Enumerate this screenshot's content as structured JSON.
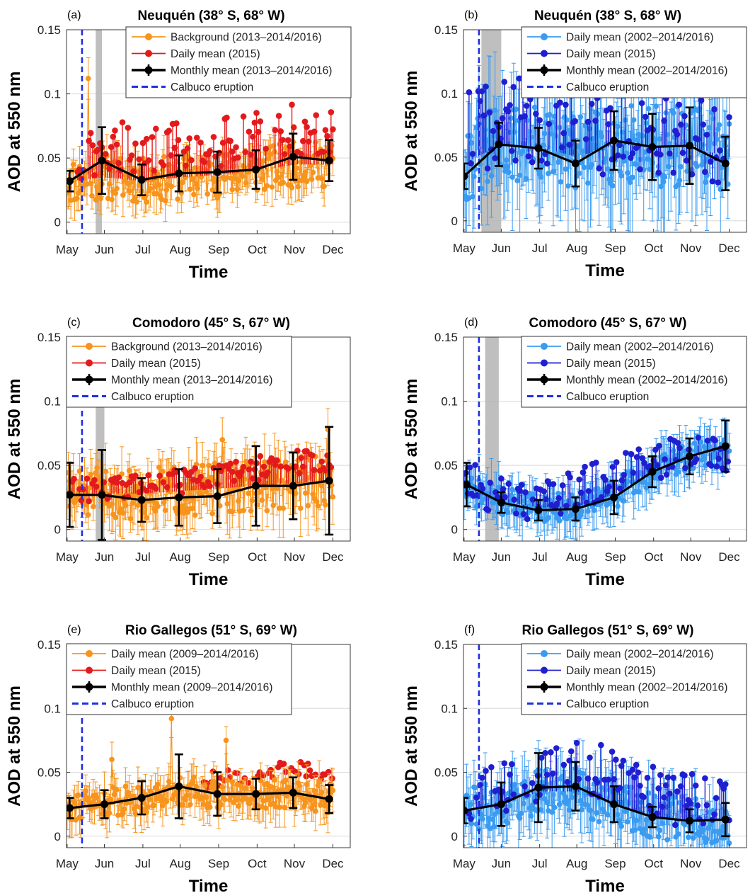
{
  "figure": {
    "colors": {
      "background_orange": "#F7941D",
      "daily_red": "#E31A1C",
      "light_blue": "#3A9BF0",
      "dark_blue": "#1F1FD1",
      "monthly_black": "#000000",
      "eruption_blue": "#1F2FE0",
      "shade_gray": "#B4B4B4",
      "grid": "#D9D9D9"
    }
  },
  "chart_data": [
    {
      "panel": "(a)",
      "type": "line",
      "title": "Neuquén",
      "title_coords": "(38° S, 68° W)",
      "xlabel": "Time",
      "ylabel": "AOD at 550 nm",
      "months": [
        "May",
        "Jun",
        "Jul",
        "Aug",
        "Sep",
        "Oct",
        "Nov",
        "Dec"
      ],
      "yticks": [
        "0.15",
        "0.1",
        "0.05",
        "0"
      ],
      "ylim": [
        -0.009,
        0.15
      ],
      "xlim_days": [
        -0.5,
        228
      ],
      "grid": true,
      "legend_position": "top-right",
      "legend": [
        {
          "label": "Background (2013–2014/2016)",
          "style": "line-dot",
          "color": "#F7941D"
        },
        {
          "label": "Daily mean (2015)",
          "style": "line-dot",
          "color": "#E31A1C"
        },
        {
          "label": "Monthly mean (2013–2014/2016)",
          "style": "errbar",
          "color": "#000000"
        },
        {
          "label": "Calbuco eruption",
          "style": "dashed",
          "color": "#1F2FE0"
        }
      ],
      "eruption_day": 12,
      "shade_days": [
        23,
        28
      ],
      "monthly_mean": {
        "x_day": [
          2,
          28,
          60,
          90,
          121,
          152,
          182,
          211
        ],
        "y": [
          0.032,
          0.048,
          0.033,
          0.038,
          0.039,
          0.041,
          0.051,
          0.048
        ],
        "err": [
          0.008,
          0.026,
          0.012,
          0.014,
          0.016,
          0.015,
          0.018,
          0.016
        ]
      },
      "background": {
        "color": "#F7941D",
        "seed": 11,
        "base": [
          0.032,
          0.035,
          0.032,
          0.035,
          0.037,
          0.04,
          0.045,
          0.045
        ],
        "amp": 0.018,
        "err": 0.012,
        "spikes": [
          [
            17,
            0.112
          ]
        ]
      },
      "daily_2015": {
        "color": "#E31A1C",
        "seed": 21,
        "base": [
          0.035,
          0.06,
          0.055,
          0.057,
          0.06,
          0.065,
          0.07,
          0.068
        ],
        "amp": 0.02,
        "lines": true,
        "start_day": 4
      },
      "bg_on_top": false
    },
    {
      "panel": "(b)",
      "type": "line",
      "title": "Neuquén",
      "title_coords": "(38° S, 68° W)",
      "xlabel": "Time",
      "ylabel": "AOD at 550 nm",
      "months": [
        "May",
        "Jun",
        "Jul",
        "Aug",
        "Sep",
        "Oct",
        "Nov",
        "Dec"
      ],
      "yticks": [
        "0.15",
        "0.1",
        "0.05",
        "0"
      ],
      "ylim": [
        -0.009,
        0.15
      ],
      "xlim_days": [
        -0.5,
        228
      ],
      "grid": true,
      "legend_position": "top-right",
      "legend": [
        {
          "label": "Daily mean (2002–2014/2016)",
          "style": "line-dot",
          "color": "#3A9BF0"
        },
        {
          "label": "Daily mean (2015)",
          "style": "line-dot",
          "color": "#1F1FD1"
        },
        {
          "label": "Monthly mean (2002–2014/2016)",
          "style": "errbar",
          "color": "#000000"
        },
        {
          "label": "Calbuco eruption",
          "style": "dashed",
          "color": "#1F2FE0"
        }
      ],
      "eruption_day": 12,
      "shade_days": [
        14,
        30
      ],
      "monthly_mean": {
        "x_day": [
          0,
          28,
          60,
          90,
          121,
          152,
          182,
          211
        ],
        "y": [
          0.035,
          0.06,
          0.057,
          0.045,
          0.063,
          0.058,
          0.059,
          0.045
        ],
        "err": [
          0.01,
          0.017,
          0.016,
          0.018,
          0.023,
          0.026,
          0.03,
          0.021
        ]
      },
      "background": {
        "color": "#3A9BF0",
        "seed": 31,
        "base": [
          0.045,
          0.06,
          0.058,
          0.05,
          0.06,
          0.058,
          0.058,
          0.05
        ],
        "amp": 0.032,
        "err": 0.035,
        "spikes": []
      },
      "daily_2015": {
        "color": "#1F1FD1",
        "seed": 41,
        "base": [
          0.06,
          0.08,
          0.07,
          0.06,
          0.07,
          0.065,
          0.065,
          0.05
        ],
        "amp": 0.035,
        "lines": true,
        "start_day": 4
      },
      "bg_on_top": false
    },
    {
      "panel": "(c)",
      "type": "line",
      "title": "Comodoro",
      "title_coords": "(45° S, 67° W)",
      "xlabel": "Time",
      "ylabel": "AOD at 550 nm",
      "months": [
        "May",
        "Jun",
        "Jul",
        "Aug",
        "Sep",
        "Oct",
        "Nov",
        "Dec"
      ],
      "yticks": [
        "0.15",
        "0.1",
        "0.05",
        "0"
      ],
      "ylim": [
        -0.009,
        0.15
      ],
      "xlim_days": [
        -0.5,
        228
      ],
      "grid": true,
      "legend_position": "top-left",
      "legend": [
        {
          "label": "Background (2013–2014/2016)",
          "style": "line-dot",
          "color": "#F7941D"
        },
        {
          "label": "Daily mean (2015)",
          "style": "line-dot",
          "color": "#E31A1C"
        },
        {
          "label": "Monthly mean (2013–2014/2016)",
          "style": "errbar",
          "color": "#000000"
        },
        {
          "label": "Calbuco eruption",
          "style": "dashed",
          "color": "#1F2FE0"
        }
      ],
      "eruption_day": 12,
      "shade_days": [
        23,
        30
      ],
      "monthly_mean": {
        "x_day": [
          2,
          28,
          60,
          90,
          121,
          152,
          182,
          211
        ],
        "y": [
          0.027,
          0.027,
          0.023,
          0.025,
          0.026,
          0.034,
          0.034,
          0.038
        ],
        "err": [
          0.025,
          0.035,
          0.017,
          0.022,
          0.021,
          0.031,
          0.026,
          0.042
        ]
      },
      "background": {
        "color": "#F7941D",
        "seed": 51,
        "base": [
          0.028,
          0.028,
          0.028,
          0.03,
          0.032,
          0.034,
          0.036,
          0.038
        ],
        "amp": 0.02,
        "err": 0.017,
        "spikes": [
          [
            210,
            0.078
          ],
          [
            125,
            0.07
          ]
        ]
      },
      "daily_2015": {
        "color": "#E31A1C",
        "seed": 61,
        "base": [
          0.03,
          0.03,
          0.033,
          0.037,
          0.041,
          0.046,
          0.051,
          0.05
        ],
        "amp": 0.01,
        "lines": true,
        "start_day": 4
      },
      "bg_on_top": false
    },
    {
      "panel": "(d)",
      "type": "line",
      "title": "Comodoro",
      "title_coords": "(45° S, 67° W)",
      "xlabel": "Time",
      "ylabel": "AOD at 550 nm",
      "months": [
        "May",
        "Jun",
        "Jul",
        "Aug",
        "Sep",
        "Oct",
        "Nov",
        "Dec"
      ],
      "yticks": [
        "0.15",
        "0.1",
        "0.05",
        "0"
      ],
      "ylim": [
        -0.009,
        0.15
      ],
      "xlim_days": [
        -0.5,
        228
      ],
      "grid": true,
      "legend_position": "top-right",
      "legend": [
        {
          "label": "Daily mean (2002–2014/2016)",
          "style": "line-dot",
          "color": "#3A9BF0"
        },
        {
          "label": "Daily mean (2015)",
          "style": "line-dot",
          "color": "#1F1FD1"
        },
        {
          "label": "Monthly mean (2002–2014/2016)",
          "style": "errbar",
          "color": "#000000"
        },
        {
          "label": "Calbuco eruption",
          "style": "dashed",
          "color": "#1F2FE0"
        }
      ],
      "eruption_day": 12,
      "shade_days": [
        17,
        28
      ],
      "monthly_mean": {
        "x_day": [
          2,
          30,
          60,
          90,
          121,
          152,
          182,
          211
        ],
        "y": [
          0.035,
          0.021,
          0.015,
          0.016,
          0.025,
          0.045,
          0.057,
          0.065
        ],
        "err": [
          0.017,
          0.008,
          0.008,
          0.009,
          0.013,
          0.012,
          0.014,
          0.02
        ]
      },
      "background": {
        "color": "#3A9BF0",
        "seed": 71,
        "base": [
          0.032,
          0.022,
          0.017,
          0.018,
          0.028,
          0.045,
          0.058,
          0.062
        ],
        "amp": 0.011,
        "err": 0.015,
        "spikes": []
      },
      "daily_2015": {
        "color": "#1F1FD1",
        "seed": 81,
        "base": [
          0.038,
          0.022,
          0.018,
          0.03,
          0.042,
          0.05,
          0.058,
          0.06
        ],
        "amp": 0.016,
        "lines": true,
        "start_day": 0
      },
      "bg_on_top": false
    },
    {
      "panel": "(e)",
      "type": "line",
      "title": "Rio Gallegos",
      "title_coords": "(51° S, 69° W)",
      "xlabel": "Time",
      "ylabel": "AOD at 550 nm",
      "months": [
        "May",
        "Jun",
        "Jul",
        "Aug",
        "Sep",
        "Oct",
        "Nov",
        "Dec"
      ],
      "yticks": [
        "0.15",
        "0.1",
        "0.05",
        "0"
      ],
      "ylim": [
        -0.009,
        0.15
      ],
      "xlim_days": [
        -0.5,
        228
      ],
      "grid": true,
      "legend_position": "top-left",
      "legend": [
        {
          "label": "Daily mean (2009–2014/2016)",
          "style": "line-dot",
          "color": "#F7941D"
        },
        {
          "label": "Daily mean (2015)",
          "style": "line-dot",
          "color": "#E31A1C"
        },
        {
          "label": "Monthly mean (2009–2014/2016)",
          "style": "errbar",
          "color": "#000000"
        },
        {
          "label": "Calbuco eruption",
          "style": "dashed",
          "color": "#1F2FE0"
        }
      ],
      "eruption_day": 12,
      "shade_days": null,
      "monthly_mean": {
        "x_day": [
          2,
          30,
          60,
          90,
          121,
          152,
          182,
          211
        ],
        "y": [
          0.022,
          0.025,
          0.03,
          0.039,
          0.033,
          0.033,
          0.034,
          0.029
        ],
        "err": [
          0.008,
          0.011,
          0.013,
          0.025,
          0.017,
          0.012,
          0.012,
          0.011
        ]
      },
      "background": {
        "color": "#F7941D",
        "seed": 91,
        "base": [
          0.024,
          0.026,
          0.03,
          0.036,
          0.033,
          0.032,
          0.033,
          0.03
        ],
        "amp": 0.012,
        "err": 0.012,
        "spikes": [
          [
            84,
            0.092
          ],
          [
            128,
            0.075
          ],
          [
            36,
            0.06
          ]
        ]
      },
      "daily_2015": {
        "color": "#E31A1C",
        "seed": 101,
        "base": [
          0.025,
          0.03,
          0.035,
          0.04,
          0.044,
          0.048,
          0.05,
          0.045
        ],
        "amp": 0.008,
        "lines": false,
        "start_day": 110
      },
      "bg_on_top": true
    },
    {
      "panel": "(f)",
      "type": "line",
      "title": "Rio Gallegos",
      "title_coords": "(51° S, 69° W)",
      "xlabel": "Time",
      "ylabel": "AOD at 550 nm",
      "months": [
        "May",
        "Jun",
        "Jul",
        "Aug",
        "Sep",
        "Oct",
        "Nov",
        "Dec"
      ],
      "yticks": [
        "0.15",
        "0.1",
        "0.05",
        "0"
      ],
      "ylim": [
        -0.009,
        0.15
      ],
      "xlim_days": [
        -0.5,
        228
      ],
      "grid": true,
      "legend_position": "top-right",
      "legend": [
        {
          "label": "Daily mean (2002–2014/2016)",
          "style": "line-dot",
          "color": "#3A9BF0"
        },
        {
          "label": "Daily mean (2015)",
          "style": "line-dot",
          "color": "#1F1FD1"
        },
        {
          "label": "Monthly mean (2002–2014/2016)",
          "style": "errbar",
          "color": "#000000"
        },
        {
          "label": "Calbuco eruption",
          "style": "dashed",
          "color": "#1F2FE0"
        }
      ],
      "eruption_day": 12,
      "shade_days": null,
      "monthly_mean": {
        "x_day": [
          0,
          30,
          60,
          90,
          121,
          152,
          182,
          211
        ],
        "y": [
          0.02,
          0.025,
          0.038,
          0.039,
          0.025,
          0.015,
          0.012,
          0.013
        ],
        "err": [
          0.01,
          0.017,
          0.027,
          0.019,
          0.014,
          0.008,
          0.009,
          0.013
        ]
      },
      "background": {
        "color": "#3A9BF0",
        "seed": 111,
        "base": [
          0.02,
          0.025,
          0.035,
          0.035,
          0.025,
          0.015,
          0.013,
          0.012
        ],
        "amp": 0.018,
        "err": 0.02,
        "spikes": []
      },
      "daily_2015": {
        "color": "#1F1FD1",
        "seed": 121,
        "base": [
          0.025,
          0.035,
          0.048,
          0.055,
          0.045,
          0.03,
          0.025,
          0.018
        ],
        "amp": 0.022,
        "lines": true,
        "start_day": 4
      },
      "bg_on_top": false
    }
  ]
}
